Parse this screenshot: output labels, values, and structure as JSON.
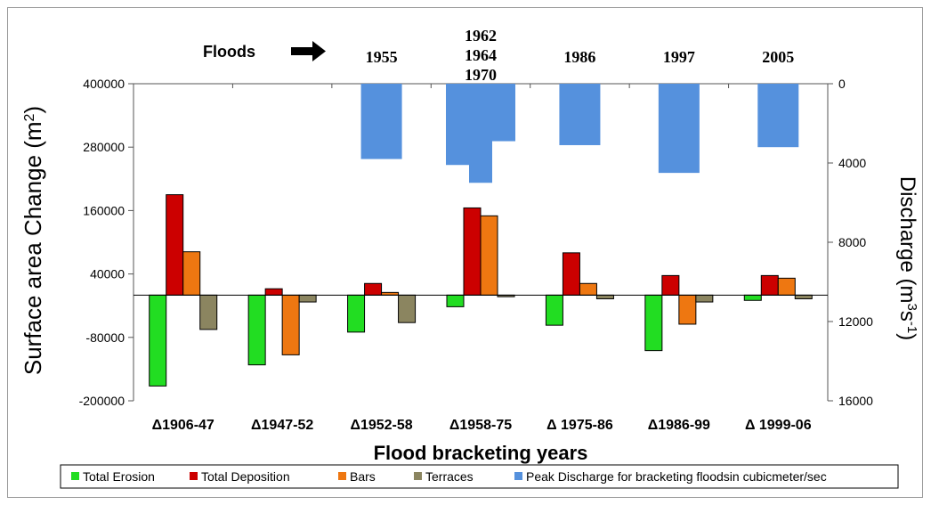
{
  "chart_data": {
    "type": "bar",
    "xlabel": "Flood bracketing years",
    "ylabel_left": "Surface area Change (m",
    "ylabel_left_sup": "2",
    "ylabel_right": "Discharge (m",
    "ylabel_right_sup": "3",
    "ylabel_right_unit": "s",
    "ylabel_right_sup2": "-1",
    "floods_label": "Floods",
    "ylim_left": [
      -200000,
      400000
    ],
    "yticks_left": [
      "400000",
      "280000",
      "160000",
      "40000",
      "-80000",
      "-200000"
    ],
    "ylim_right": [
      0,
      16000
    ],
    "yticks_right": [
      "0",
      "4000",
      "8000",
      "12000",
      "16000"
    ],
    "right_axis_inverted": true,
    "categories": [
      "Δ1906-47",
      "Δ1947-52",
      "Δ1952-58",
      "Δ1958-75",
      "Δ 1975-86",
      "Δ1986-99",
      "Δ 1999-06"
    ],
    "series": [
      {
        "name": "Total Erosion",
        "color": "#22dd22",
        "values": [
          -172000,
          -132000,
          -70000,
          -22000,
          -57000,
          -105000,
          -10000
        ]
      },
      {
        "name": "Total Deposition",
        "color": "#cc0000",
        "values": [
          190000,
          12000,
          22000,
          165000,
          80000,
          37000,
          37000
        ]
      },
      {
        "name": "Bars",
        "color": "#ee7711",
        "values": [
          82000,
          -113000,
          5000,
          150000,
          22000,
          -55000,
          32000
        ]
      },
      {
        "name": "Terraces",
        "color": "#8b8560",
        "values": [
          -65000,
          -13000,
          -52000,
          -3000,
          -7000,
          -13000,
          -7000
        ]
      }
    ],
    "discharge_series": {
      "name": "Peak Discharge for bracketing floodsin cubicmeter/sec",
      "color": "#5591dd",
      "floods": [
        {
          "label": [
            "1955"
          ],
          "category_index": 2,
          "bars": [
            3800
          ]
        },
        {
          "label": [
            "1962",
            "1964",
            "1970"
          ],
          "category_index": 3,
          "bars": [
            4100,
            5000,
            2900
          ]
        },
        {
          "label": [
            "1986"
          ],
          "category_index": 4,
          "bars": [
            3100
          ]
        },
        {
          "label": [
            "1997"
          ],
          "category_index": 5,
          "bars": [
            4500
          ]
        },
        {
          "label": [
            "2005"
          ],
          "category_index": 6,
          "bars": [
            3200
          ]
        }
      ]
    },
    "legend": [
      "Total Erosion",
      "Total Deposition",
      "Bars",
      "Terraces",
      "Peak Discharge for bracketing floodsin cubicmeter/sec"
    ],
    "legend_placement": "bottom",
    "grid": false
  }
}
